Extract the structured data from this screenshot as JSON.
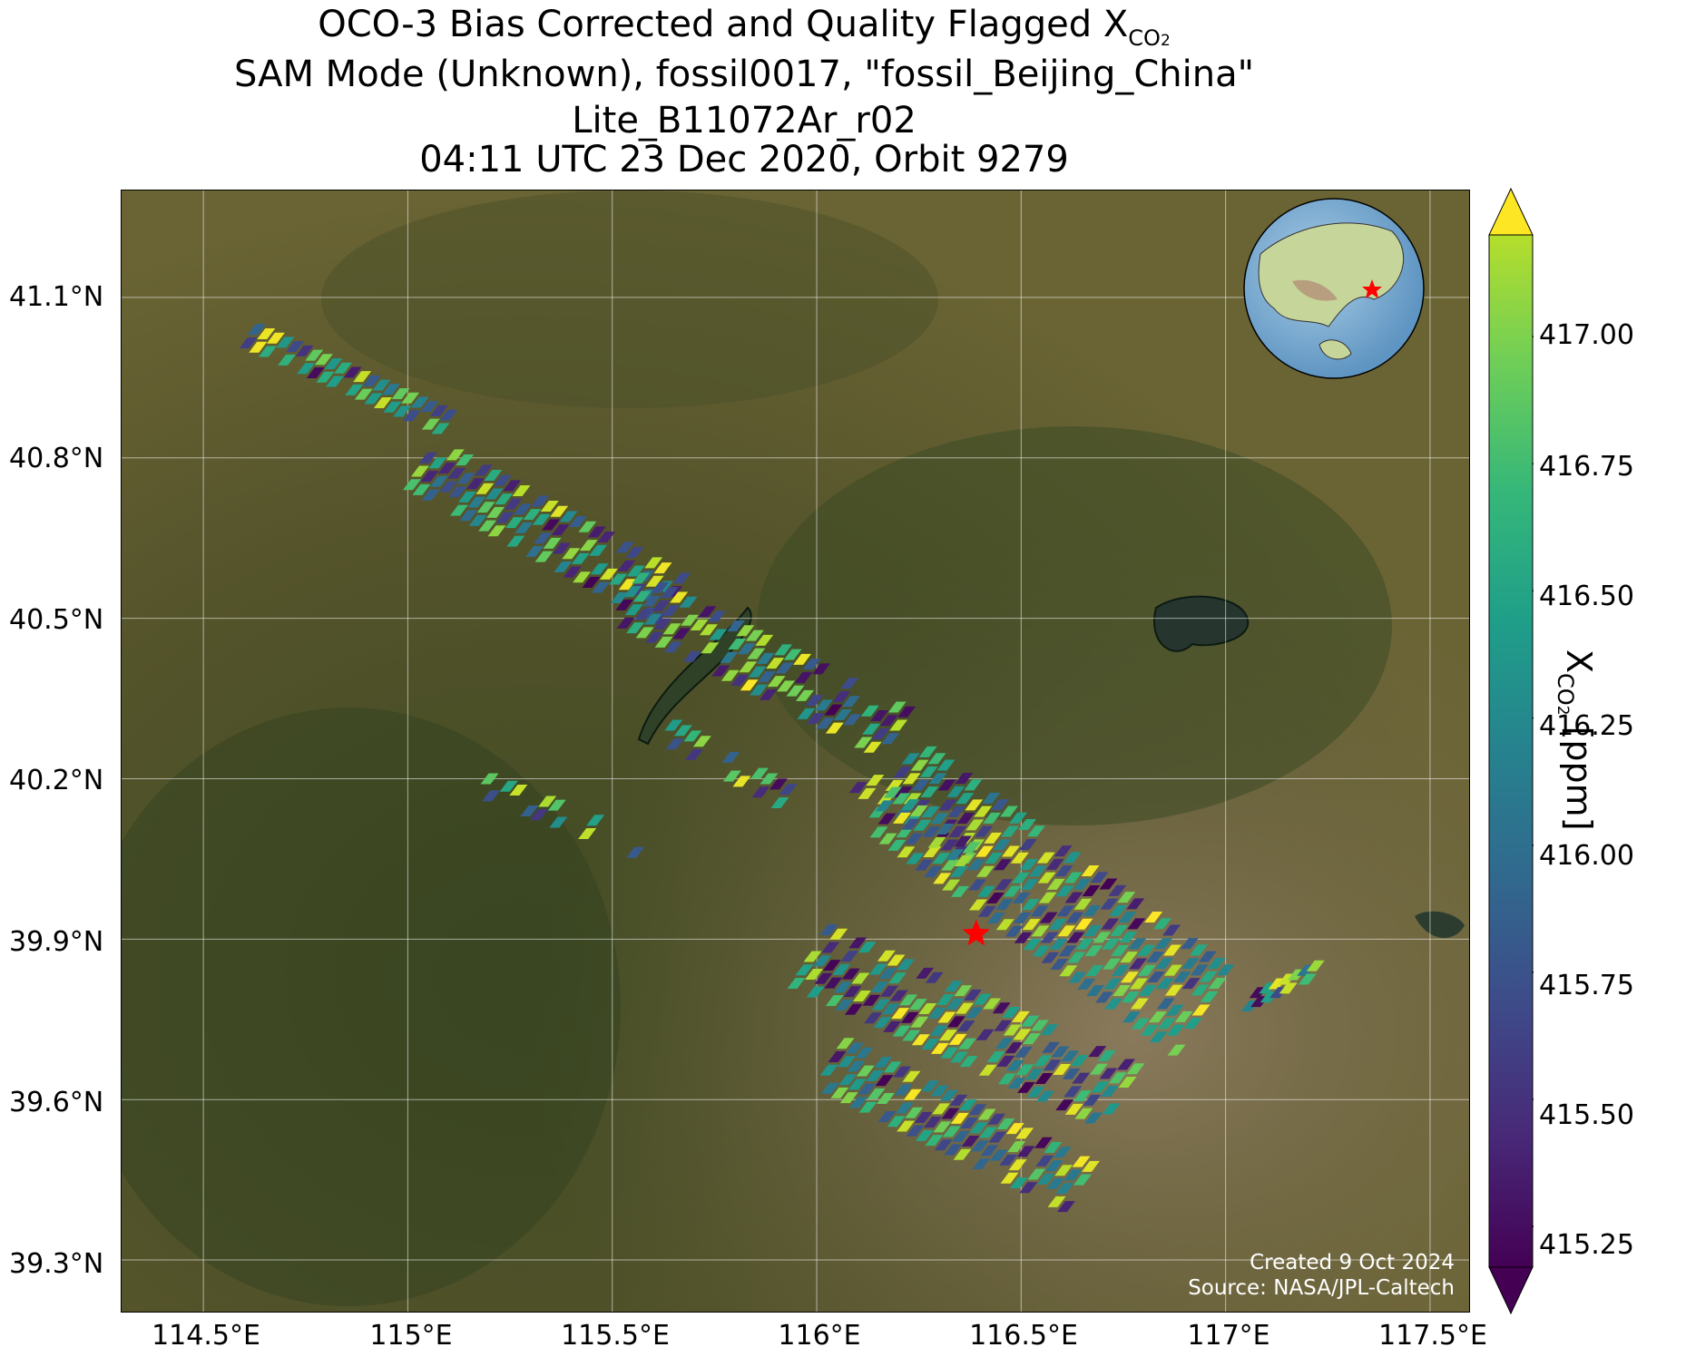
{
  "title": {
    "line1_prefix": "OCO-3 Bias Corrected and Quality Flagged X",
    "line1_sub": "CO",
    "line1_subsub": "2",
    "line2": "SAM Mode (Unknown), fossil0017, \"fossil_Beijing_China\"",
    "line3": "Lite_B11072Ar_r02",
    "line4": "04:11 UTC 23 Dec 2020, Orbit 9279"
  },
  "map": {
    "lat_ticks": [
      "41.1°N",
      "40.8°N",
      "40.5°N",
      "40.2°N",
      "39.9°N",
      "39.6°N",
      "39.3°N"
    ],
    "lon_ticks": [
      "114.5°E",
      "115°E",
      "115.5°E",
      "116°E",
      "116.5°E",
      "117°E",
      "117.5°E"
    ],
    "target_marker": {
      "lon": 116.39,
      "lat": 39.91,
      "color": "#ff0000",
      "icon": "red-star-icon"
    },
    "inset_globe": {
      "icon": "globe-icon",
      "marker": "red-star-icon"
    },
    "credit_line1": "Created 9 Oct 2024",
    "credit_line2": "Source: NASA/JPL-Caltech",
    "colormap": "viridis"
  },
  "colorbar": {
    "ticks": [
      "417.00",
      "416.75",
      "416.50",
      "416.25",
      "416.00",
      "415.75",
      "415.50",
      "415.25"
    ],
    "label_prefix": "X",
    "label_sub": "CO",
    "label_subsub": "2",
    "label_suffix": " [ppm]",
    "range": [
      415.17,
      417.2
    ],
    "extend": "both"
  },
  "chart_data": {
    "type": "heatmap",
    "xlim": [
      114.3,
      117.6
    ],
    "ylim": [
      39.2,
      41.3
    ],
    "color_range_ppm": [
      415.17,
      417.2
    ]
  }
}
